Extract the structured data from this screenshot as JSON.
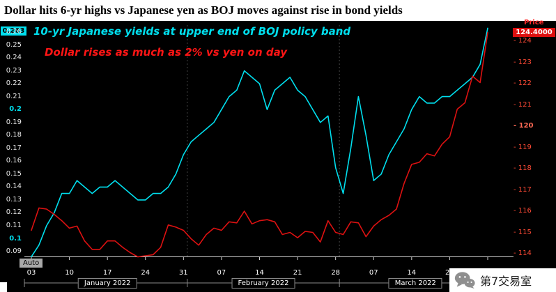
{
  "title": "Dollar hits 6-yr highs vs Japanese yen as BOJ moves against rise in  bond yields",
  "annotations": {
    "yield_note": "10-yr Japanese yields at upper end of BOJ policy band",
    "dollar_note": "Dollar rises as much as 2% vs yen on day"
  },
  "colors": {
    "background": "#000000",
    "yield_line": "#00dfee",
    "price_line": "#dd1111",
    "right_axis_text": "#ff4a35",
    "left_value_box": "#00dfee",
    "right_value_box": "#dd0f0f"
  },
  "left_axis": {
    "current_value": "0.263",
    "ticks": [
      "0.26",
      "0.25",
      "0.24",
      "0.23",
      "0.22",
      "0.21",
      "0.2",
      "0.19",
      "0.18",
      "0.17",
      "0.16",
      "0.15",
      "0.14",
      "0.13",
      "0.12",
      "0.11",
      "0.1",
      "0.09"
    ],
    "highlight_ticks": [
      "0.2",
      "0.1"
    ]
  },
  "right_axis": {
    "label": "Price",
    "current_value": "124.4000",
    "ticks": [
      "124",
      "123",
      "122",
      "121",
      "120",
      "119",
      "118",
      "117",
      "116",
      "115",
      "114"
    ],
    "highlight_ticks": [
      "120"
    ]
  },
  "x_axis": {
    "ticks": [
      "03",
      "10",
      "17",
      "24",
      "31",
      "07",
      "14",
      "21",
      "28",
      "07",
      "14",
      "21",
      "28"
    ],
    "months": [
      "January 2022",
      "February 2022",
      "March 2022"
    ],
    "auto_label": "Auto"
  },
  "footer": {
    "brand": "第7交易室",
    "icon": "wechat-icon"
  },
  "chart_data": {
    "type": "line",
    "x": [
      "01-03",
      "01-04",
      "01-05",
      "01-06",
      "01-07",
      "01-10",
      "01-11",
      "01-12",
      "01-13",
      "01-14",
      "01-17",
      "01-18",
      "01-19",
      "01-20",
      "01-21",
      "01-24",
      "01-25",
      "01-26",
      "01-27",
      "01-28",
      "01-31",
      "02-01",
      "02-02",
      "02-03",
      "02-04",
      "02-07",
      "02-08",
      "02-09",
      "02-10",
      "02-11",
      "02-14",
      "02-15",
      "02-16",
      "02-17",
      "02-18",
      "02-21",
      "02-22",
      "02-23",
      "02-24",
      "02-25",
      "02-28",
      "03-01",
      "03-02",
      "03-03",
      "03-04",
      "03-07",
      "03-08",
      "03-09",
      "03-10",
      "03-11",
      "03-14",
      "03-15",
      "03-16",
      "03-17",
      "03-18",
      "03-21",
      "03-22",
      "03-23",
      "03-24",
      "03-25",
      "03-28"
    ],
    "tick_indices": [
      0,
      5,
      10,
      15,
      20,
      25,
      30,
      35,
      40,
      45,
      50,
      55,
      60
    ],
    "month_start_indices": [
      0,
      21,
      41
    ],
    "month_center_indices": [
      10,
      30.5,
      50.5
    ],
    "left_ylim": [
      0.09,
      0.263
    ],
    "right_ylim": [
      114,
      124.4
    ],
    "series": [
      {
        "name": "10-yr Japanese government bond yield",
        "axis": "left",
        "color": "#00dfee",
        "values": [
          0.086,
          0.095,
          0.11,
          0.12,
          0.135,
          0.135,
          0.145,
          0.14,
          0.135,
          0.14,
          0.14,
          0.145,
          0.14,
          0.135,
          0.13,
          0.13,
          0.135,
          0.135,
          0.14,
          0.15,
          0.165,
          0.175,
          0.18,
          0.185,
          0.19,
          0.2,
          0.21,
          0.215,
          0.23,
          0.225,
          0.22,
          0.2,
          0.215,
          0.22,
          0.225,
          0.215,
          0.21,
          0.2,
          0.19,
          0.195,
          0.155,
          0.135,
          0.17,
          0.21,
          0.18,
          0.145,
          0.15,
          0.165,
          0.175,
          0.185,
          0.2,
          0.21,
          0.205,
          0.205,
          0.21,
          0.21,
          0.215,
          0.22,
          0.225,
          0.235,
          0.263
        ]
      },
      {
        "name": "USD/JPY price",
        "axis": "right",
        "color": "#dd1111",
        "values": [
          115.1,
          116.15,
          116.1,
          115.85,
          115.55,
          115.2,
          115.3,
          114.6,
          114.2,
          114.2,
          114.6,
          114.6,
          114.3,
          114.05,
          113.85,
          113.9,
          113.95,
          114.3,
          115.35,
          115.25,
          115.1,
          114.7,
          114.4,
          114.9,
          115.2,
          115.1,
          115.5,
          115.45,
          116.0,
          115.4,
          115.55,
          115.6,
          115.5,
          114.9,
          115.0,
          114.75,
          115.05,
          115.0,
          114.55,
          115.55,
          115.0,
          114.9,
          115.5,
          115.45,
          114.8,
          115.3,
          115.6,
          115.8,
          116.1,
          117.3,
          118.2,
          118.3,
          118.7,
          118.6,
          119.15,
          119.5,
          120.8,
          121.1,
          122.35,
          122.05,
          124.4
        ]
      }
    ]
  }
}
